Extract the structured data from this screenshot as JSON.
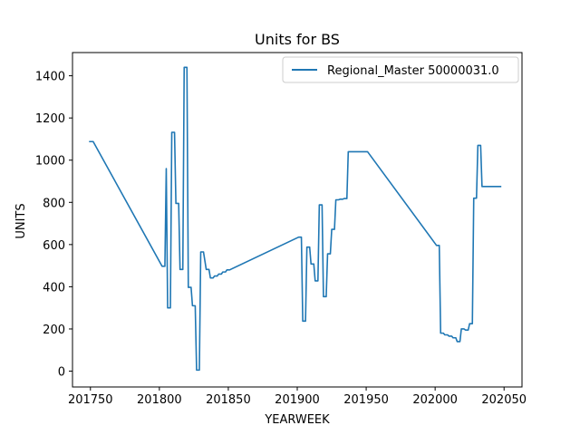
{
  "chart_data": {
    "type": "line",
    "title": "Units for BS",
    "xlabel": "YEARWEEK",
    "ylabel": "UNITS",
    "xlim": [
      201737,
      202063
    ],
    "ylim": [
      -75,
      1510
    ],
    "xticks": [
      201750,
      201800,
      201850,
      201900,
      201950,
      202000,
      202050
    ],
    "yticks": [
      0,
      200,
      400,
      600,
      800,
      1000,
      1200,
      1400
    ],
    "grid": false,
    "legend_position": "top-right",
    "colors": {
      "series": "#1f77b4"
    },
    "series": [
      {
        "name": "Regional_Master 50000031.0",
        "x": [
          201749,
          201752,
          201802,
          201804,
          201805,
          201806,
          201808,
          201809,
          201811,
          201812,
          201814,
          201815,
          201817,
          201818,
          201820,
          201821,
          201823,
          201824,
          201826,
          201827,
          201829,
          201830,
          201832,
          201834,
          201836,
          201837,
          201839,
          201840,
          201842,
          201843,
          201845,
          201846,
          201848,
          201849,
          201851,
          201901,
          201903,
          201904,
          201906,
          201907,
          201909,
          201910,
          201912,
          201913,
          201915,
          201916,
          201918,
          201919,
          201921,
          201922,
          201924,
          201925,
          201927,
          201928,
          201930,
          201931,
          201933,
          201934,
          201936,
          201937,
          201939,
          201940,
          201942,
          201943,
          201945,
          201946,
          201948,
          201949,
          201951,
          202001,
          202003,
          202004,
          202006,
          202007,
          202009,
          202010,
          202012,
          202013,
          202015,
          202016,
          202018,
          202019,
          202021,
          202022,
          202024,
          202025,
          202027,
          202028,
          202030,
          202031,
          202033,
          202034,
          202036,
          202037,
          202039,
          202040,
          202042,
          202043,
          202045,
          202046,
          202048
        ],
        "y": [
          1088,
          1088,
          497,
          497,
          960,
          300,
          300,
          1132,
          1132,
          795,
          795,
          482,
          482,
          1440,
          1440,
          397,
          397,
          310,
          310,
          5,
          5,
          565,
          565,
          482,
          482,
          442,
          442,
          451,
          451,
          460,
          460,
          470,
          470,
          480,
          480,
          635,
          635,
          237,
          237,
          588,
          588,
          508,
          508,
          428,
          428,
          788,
          788,
          353,
          353,
          556,
          556,
          672,
          672,
          812,
          812,
          815,
          815,
          818,
          818,
          1040,
          1040,
          1040,
          1040,
          1040,
          1040,
          1040,
          1040,
          1040,
          1040,
          596,
          596,
          180,
          180,
          172,
          172,
          166,
          166,
          158,
          158,
          140,
          140,
          200,
          200,
          195,
          195,
          225,
          225,
          820,
          820,
          1070,
          1070,
          875,
          875,
          875,
          875,
          875,
          875,
          875,
          875,
          875,
          875
        ]
      }
    ]
  }
}
